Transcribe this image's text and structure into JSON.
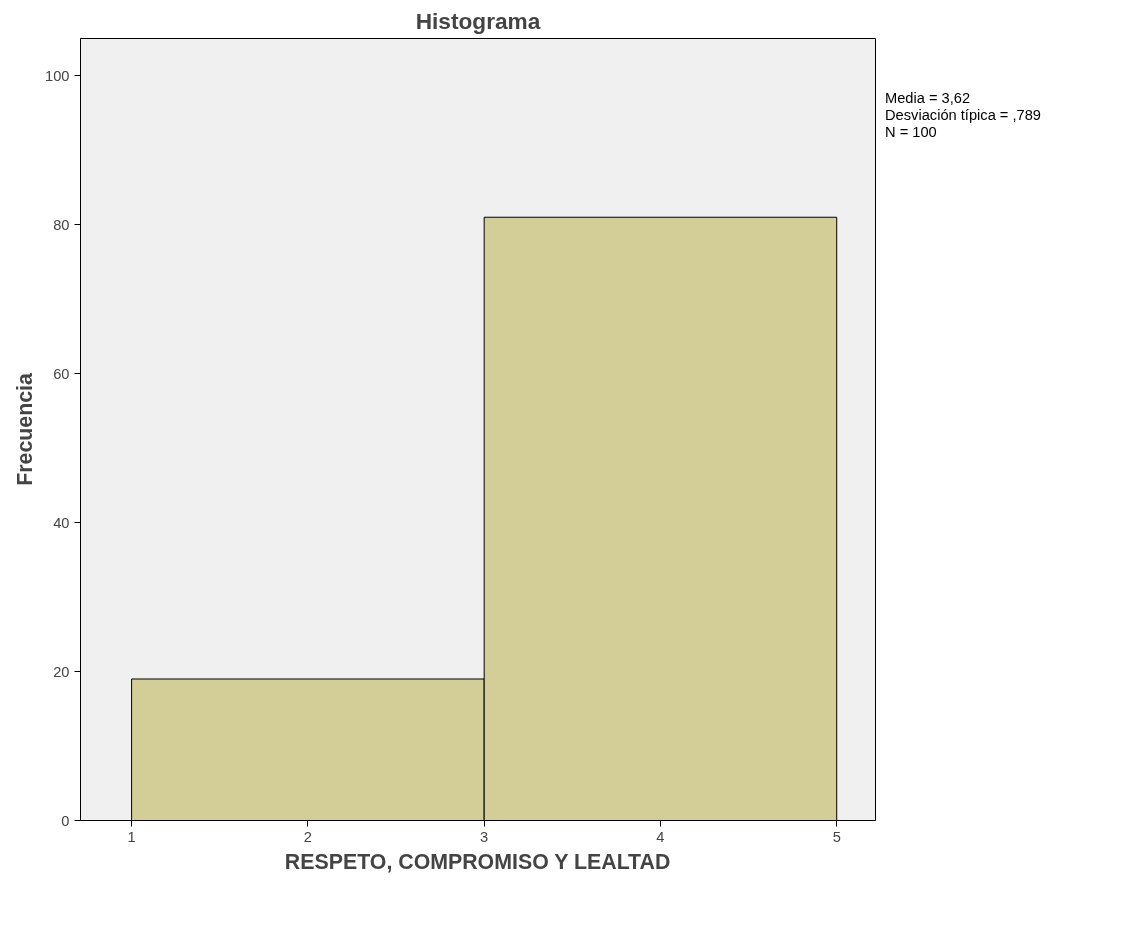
{
  "chart_data": {
    "type": "histogram",
    "title": "Histograma",
    "xlabel": "RESPETO, COMPROMISO Y LEALTAD",
    "ylabel": "Frecuencia",
    "bins": [
      1,
      3,
      5
    ],
    "values": [
      19,
      81
    ],
    "color": "#d3ce97",
    "xlim": [
      0.71,
      5.22
    ],
    "xticks": [
      1,
      2,
      3,
      4,
      5
    ],
    "ylim": [
      0,
      105
    ],
    "yticks": [
      0,
      20,
      40,
      60,
      80,
      100
    ],
    "grid": false,
    "annotations": [
      "Media = 3,62",
      "Desviación típica = ,789",
      "N = 100"
    ]
  }
}
